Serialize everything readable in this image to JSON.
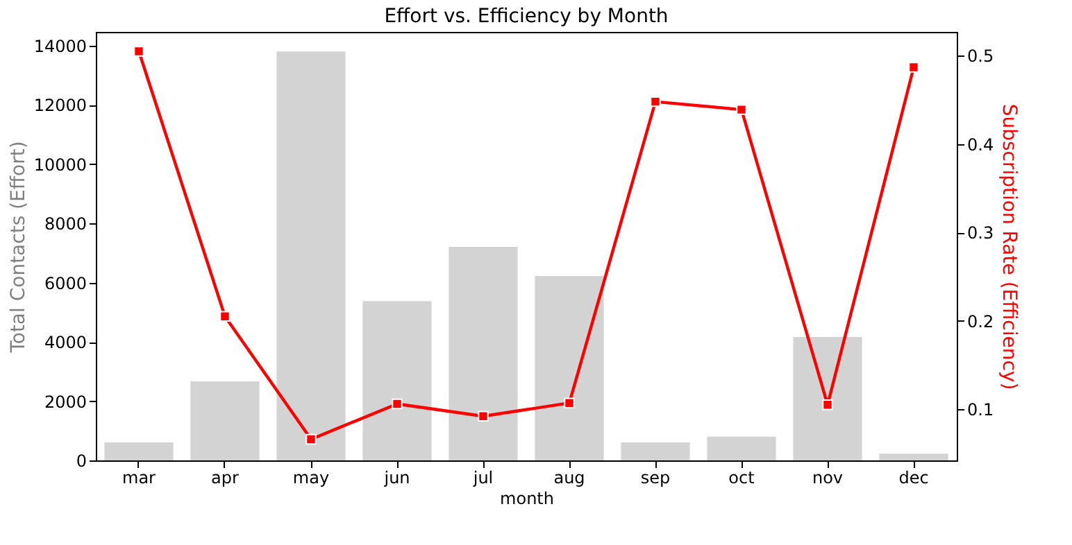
{
  "chart_data": {
    "type": "bar",
    "title": "Effort vs. Efficiency by Month",
    "xlabel": "month",
    "ylabel": "Total Contacts (Effort)",
    "y2label": "Subscription Rate (Efficiency)",
    "categories": [
      "mar",
      "apr",
      "may",
      "jun",
      "jul",
      "aug",
      "sep",
      "oct",
      "nov",
      "dec"
    ],
    "series": [
      {
        "color": "#d3d3d3",
        "values": [
          610,
          2670,
          13810,
          5380,
          7210,
          6230,
          610,
          800,
          4170,
          230
        ]
      },
      {
        "type": "line",
        "axis": "y2",
        "color": "#ff0000",
        "marker": "square",
        "line_style": "solid",
        "values": [
          0.505,
          0.205,
          0.066,
          0.106,
          0.092,
          0.107,
          0.448,
          0.439,
          0.105,
          0.487
        ]
      }
    ],
    "ylim": [
      0,
      14470
    ],
    "yticks": [
      0,
      2000,
      4000,
      6000,
      8000,
      10000,
      12000,
      14000
    ],
    "y2lim": [
      0.042,
      0.527
    ],
    "y2ticks": [
      0.1,
      0.2,
      0.3,
      0.4,
      0.5
    ],
    "grid": false
  }
}
